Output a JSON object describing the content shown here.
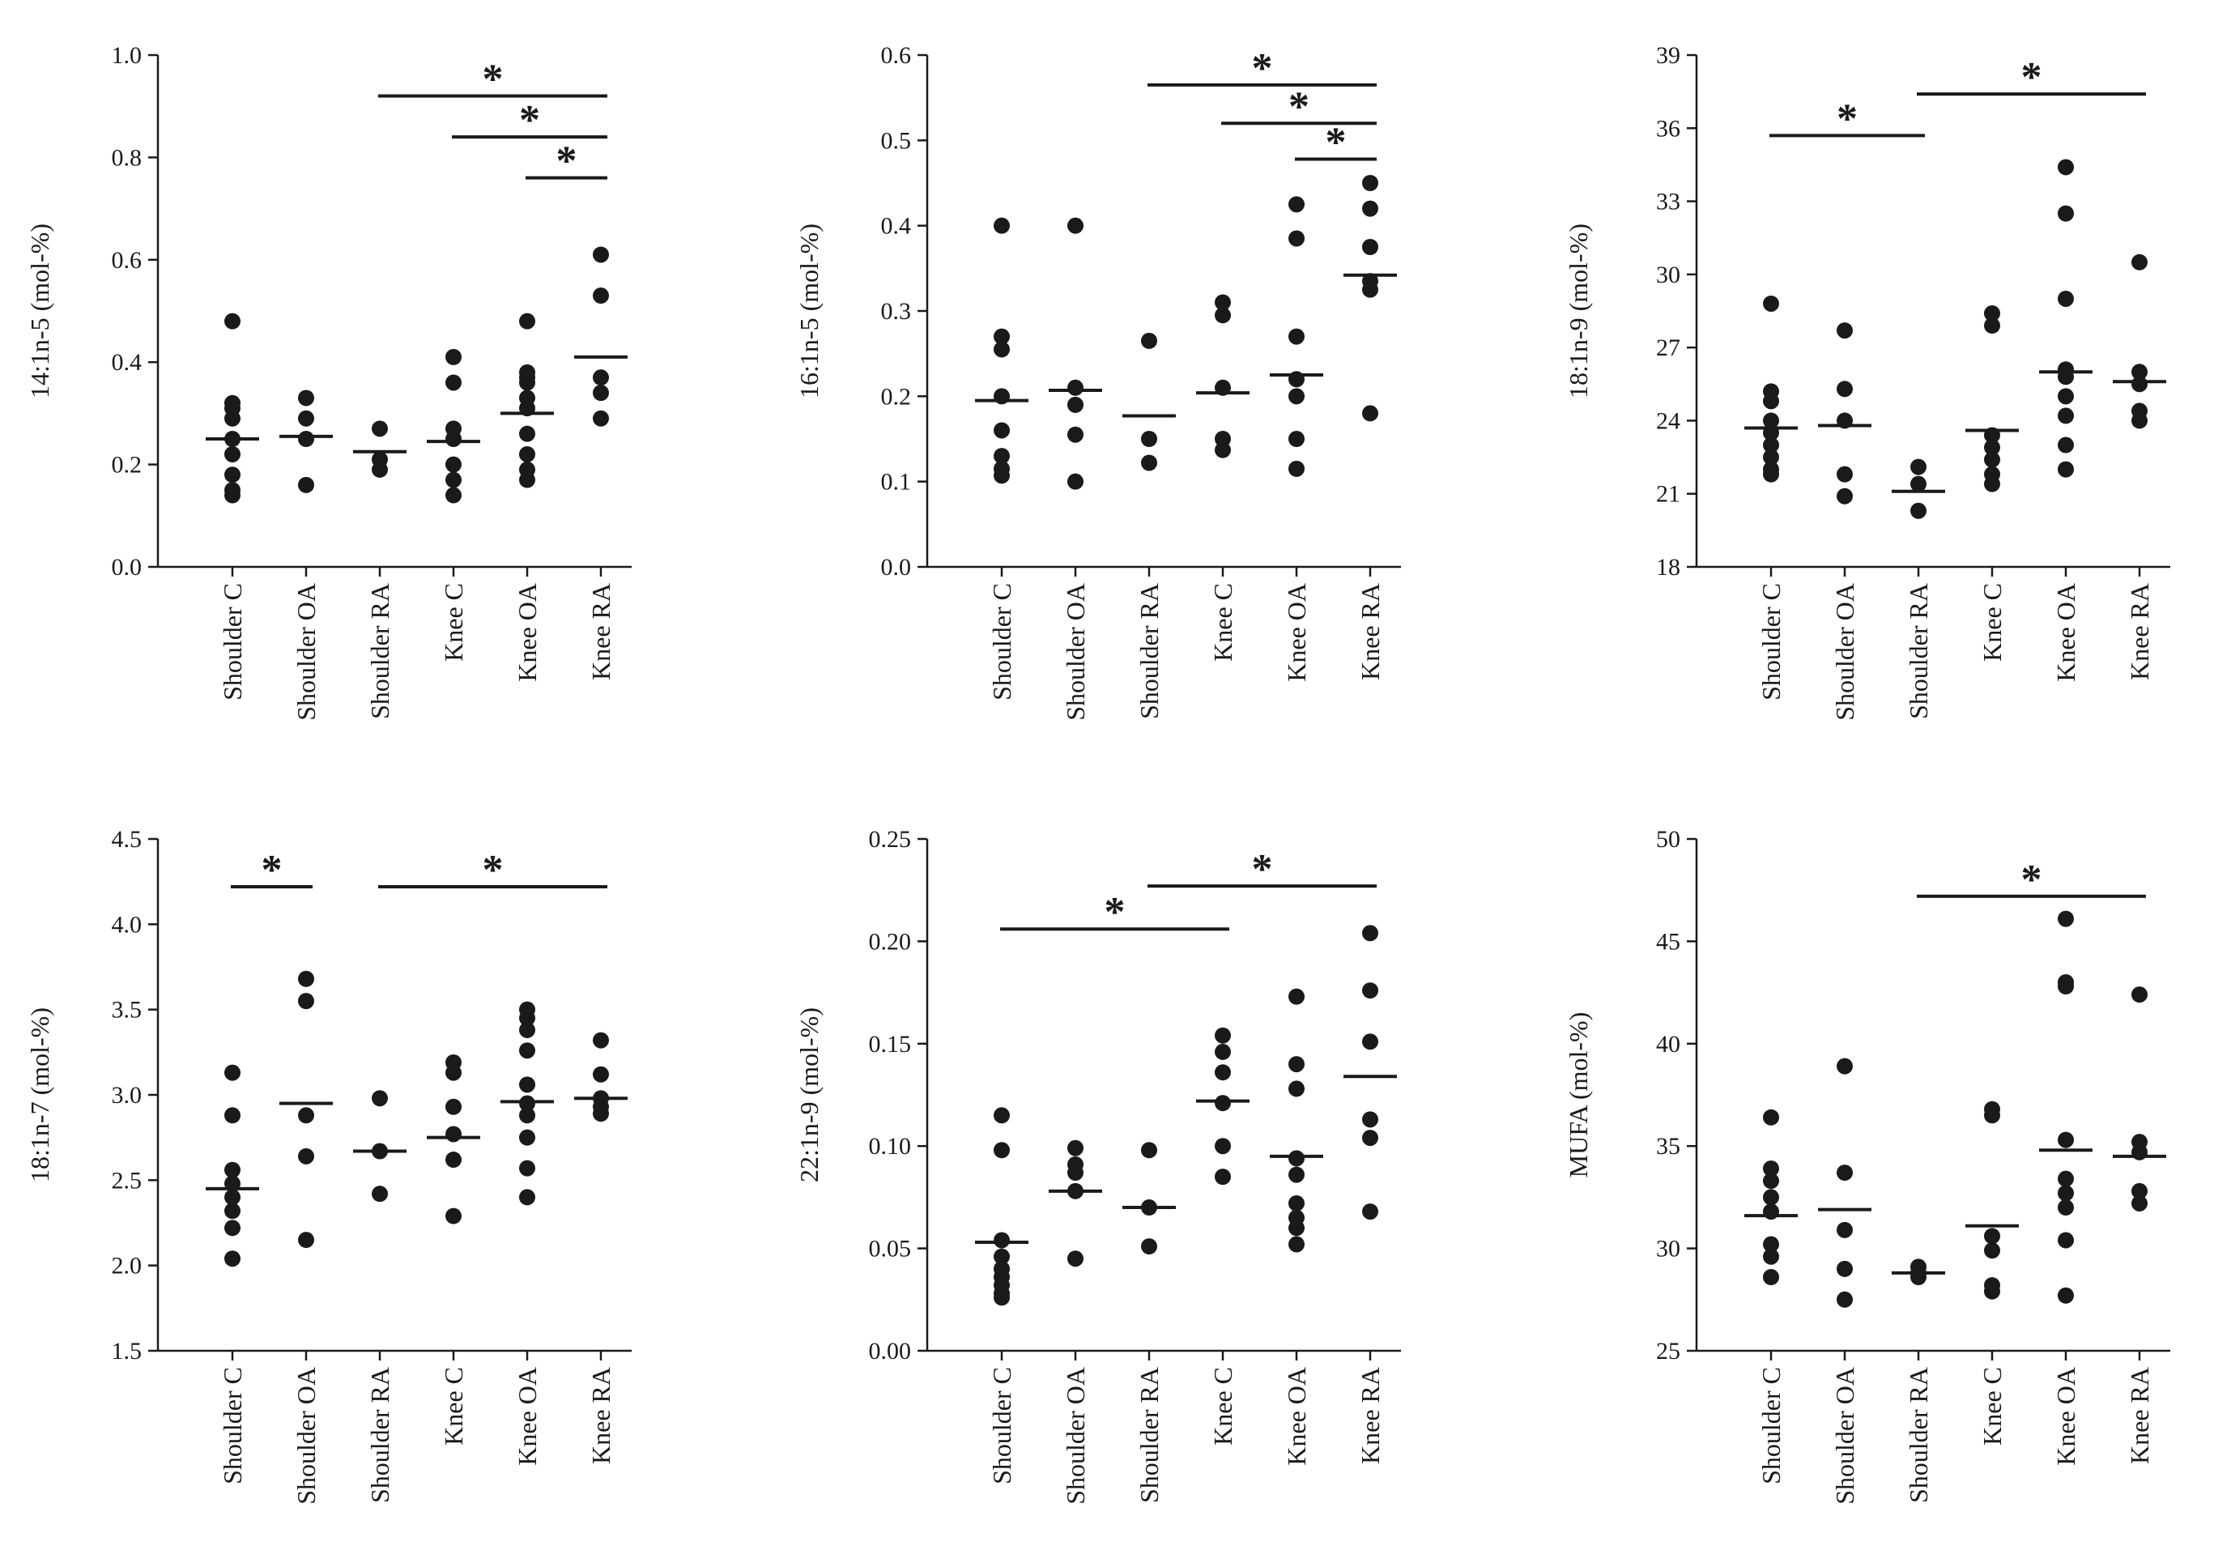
{
  "chart_data": [
    {
      "type": "scatter",
      "ylabel": "14:1n-5 (mol-%)",
      "ylim": [
        0.0,
        1.0
      ],
      "yticks": [
        0.0,
        0.2,
        0.4,
        0.6,
        0.8,
        1.0
      ],
      "ytick_labels": [
        "0.0",
        "0.2",
        "0.4",
        "0.6",
        "0.8",
        "1.0"
      ],
      "categories": [
        "Shoulder C",
        "Shoulder OA",
        "Shoulder RA",
        "Knee C",
        "Knee OA",
        "Knee RA"
      ],
      "points": [
        [
          0.48,
          0.32,
          0.31,
          0.29,
          0.25,
          0.22,
          0.18,
          0.15,
          0.14
        ],
        [
          0.33,
          0.29,
          0.25,
          0.16
        ],
        [
          0.27,
          0.21,
          0.19
        ],
        [
          0.41,
          0.36,
          0.27,
          0.25,
          0.2,
          0.17,
          0.14
        ],
        [
          0.48,
          0.38,
          0.37,
          0.36,
          0.33,
          0.31,
          0.26,
          0.22,
          0.19,
          0.17
        ],
        [
          0.61,
          0.53,
          0.37,
          0.34,
          0.29
        ]
      ],
      "means": [
        0.25,
        0.255,
        0.225,
        0.245,
        0.3,
        0.41
      ],
      "significance": [
        {
          "from": "Shoulder RA",
          "to": "Knee RA",
          "value": 0.92,
          "label": "*"
        },
        {
          "from": "Knee C",
          "to": "Knee RA",
          "value": 0.84,
          "label": "*"
        },
        {
          "from": "Knee OA",
          "to": "Knee RA",
          "value": 0.76,
          "label": "*"
        }
      ]
    },
    {
      "type": "scatter",
      "ylabel": "16:1n-5 (mol-%)",
      "ylim": [
        0.0,
        0.6
      ],
      "yticks": [
        0.0,
        0.1,
        0.2,
        0.3,
        0.4,
        0.5,
        0.6
      ],
      "ytick_labels": [
        "0.0",
        "0.1",
        "0.2",
        "0.3",
        "0.4",
        "0.5",
        "0.6"
      ],
      "categories": [
        "Shoulder C",
        "Shoulder OA",
        "Shoulder RA",
        "Knee C",
        "Knee OA",
        "Knee RA"
      ],
      "points": [
        [
          0.4,
          0.27,
          0.255,
          0.2,
          0.16,
          0.13,
          0.115,
          0.107
        ],
        [
          0.4,
          0.21,
          0.19,
          0.155,
          0.1
        ],
        [
          0.265,
          0.15,
          0.122
        ],
        [
          0.31,
          0.295,
          0.21,
          0.15,
          0.137
        ],
        [
          0.425,
          0.385,
          0.27,
          0.22,
          0.2,
          0.15,
          0.115
        ],
        [
          0.45,
          0.42,
          0.375,
          0.335,
          0.325,
          0.18
        ]
      ],
      "means": [
        0.195,
        0.207,
        0.177,
        0.204,
        0.225,
        0.342
      ],
      "significance": [
        {
          "from": "Shoulder RA",
          "to": "Knee RA",
          "value": 0.565,
          "label": "*"
        },
        {
          "from": "Knee C",
          "to": "Knee RA",
          "value": 0.52,
          "label": "*"
        },
        {
          "from": "Knee OA",
          "to": "Knee RA",
          "value": 0.478,
          "label": "*"
        }
      ]
    },
    {
      "type": "scatter",
      "ylabel": "18:1n-9 (mol-%)",
      "ylim": [
        18,
        39
      ],
      "yticks": [
        18,
        21,
        24,
        27,
        30,
        33,
        36,
        39
      ],
      "ytick_labels": [
        "18",
        "21",
        "24",
        "27",
        "30",
        "33",
        "36",
        "39"
      ],
      "categories": [
        "Shoulder C",
        "Shoulder OA",
        "Shoulder RA",
        "Knee C",
        "Knee OA",
        "Knee RA"
      ],
      "points": [
        [
          28.8,
          25.2,
          24.8,
          24.0,
          23.5,
          23.0,
          22.5,
          22.0,
          21.8
        ],
        [
          27.7,
          25.3,
          24.0,
          21.8,
          20.9
        ],
        [
          22.1,
          21.4,
          20.3
        ],
        [
          28.4,
          27.9,
          23.4,
          22.9,
          22.4,
          21.8,
          21.4
        ],
        [
          34.4,
          32.5,
          29.0,
          26.1,
          25.8,
          25.0,
          24.2,
          23.0,
          22.0
        ],
        [
          30.5,
          26.0,
          25.5,
          24.4,
          24.0
        ]
      ],
      "means": [
        23.7,
        23.8,
        21.1,
        23.6,
        26.0,
        25.6
      ],
      "significance": [
        {
          "from": "Shoulder C",
          "to": "Shoulder RA",
          "value": 35.7,
          "label": "*"
        },
        {
          "from": "Shoulder RA",
          "to": "Knee RA",
          "value": 37.4,
          "label": "*"
        }
      ]
    },
    {
      "type": "scatter",
      "ylabel": "18:1n-7 (mol-%)",
      "ylim": [
        1.5,
        4.5
      ],
      "yticks": [
        1.5,
        2.0,
        2.5,
        3.0,
        3.5,
        4.0,
        4.5
      ],
      "ytick_labels": [
        "1.5",
        "2.0",
        "2.5",
        "3.0",
        "3.5",
        "4.0",
        "4.5"
      ],
      "categories": [
        "Shoulder C",
        "Shoulder OA",
        "Shoulder RA",
        "Knee C",
        "Knee OA",
        "Knee RA"
      ],
      "points": [
        [
          3.13,
          2.88,
          2.56,
          2.48,
          2.4,
          2.32,
          2.22,
          2.04
        ],
        [
          3.68,
          3.55,
          2.88,
          2.64,
          2.15
        ],
        [
          2.98,
          2.67,
          2.42
        ],
        [
          3.19,
          3.13,
          2.93,
          2.77,
          2.62,
          2.29
        ],
        [
          3.5,
          3.45,
          3.38,
          3.26,
          3.06,
          2.95,
          2.88,
          2.75,
          2.57,
          2.4
        ],
        [
          3.32,
          3.12,
          2.98,
          2.93,
          2.89
        ]
      ],
      "means": [
        2.45,
        2.95,
        2.67,
        2.75,
        2.96,
        2.98
      ],
      "significance": [
        {
          "from": "Shoulder C",
          "to": "Shoulder OA",
          "value": 4.22,
          "label": "*"
        },
        {
          "from": "Shoulder RA",
          "to": "Knee RA",
          "value": 4.22,
          "label": "*"
        }
      ]
    },
    {
      "type": "scatter",
      "ylabel": "22:1n-9 (mol-%)",
      "ylim": [
        0.0,
        0.25
      ],
      "yticks": [
        0.0,
        0.05,
        0.1,
        0.15,
        0.2,
        0.25
      ],
      "ytick_labels": [
        "0.00",
        "0.05",
        "0.10",
        "0.15",
        "0.20",
        "0.25"
      ],
      "categories": [
        "Shoulder C",
        "Shoulder OA",
        "Shoulder RA",
        "Knee C",
        "Knee OA",
        "Knee RA"
      ],
      "points": [
        [
          0.115,
          0.098,
          0.054,
          0.046,
          0.04,
          0.036,
          0.032,
          0.028,
          0.026
        ],
        [
          0.099,
          0.091,
          0.087,
          0.078,
          0.045
        ],
        [
          0.098,
          0.07,
          0.051
        ],
        [
          0.154,
          0.146,
          0.136,
          0.121,
          0.1,
          0.085
        ],
        [
          0.173,
          0.14,
          0.128,
          0.094,
          0.086,
          0.072,
          0.065,
          0.06,
          0.052
        ],
        [
          0.204,
          0.176,
          0.151,
          0.113,
          0.104,
          0.068
        ]
      ],
      "means": [
        0.053,
        0.078,
        0.07,
        0.122,
        0.095,
        0.134
      ],
      "significance": [
        {
          "from": "Shoulder C",
          "to": "Knee C",
          "value": 0.206,
          "label": "*"
        },
        {
          "from": "Shoulder RA",
          "to": "Knee RA",
          "value": 0.227,
          "label": "*"
        }
      ]
    },
    {
      "type": "scatter",
      "ylabel": "MUFA (mol-%)",
      "ylim": [
        25,
        50
      ],
      "yticks": [
        25,
        30,
        35,
        40,
        45,
        50
      ],
      "ytick_labels": [
        "25",
        "30",
        "35",
        "40",
        "45",
        "50"
      ],
      "categories": [
        "Shoulder C",
        "Shoulder OA",
        "Shoulder RA",
        "Knee C",
        "Knee OA",
        "Knee RA"
      ],
      "points": [
        [
          36.4,
          33.9,
          33.3,
          32.5,
          31.8,
          30.2,
          29.6,
          28.6
        ],
        [
          38.9,
          33.7,
          30.9,
          29.0,
          27.5
        ],
        [
          29.1,
          28.8,
          28.6
        ],
        [
          36.8,
          36.5,
          30.6,
          29.9,
          28.2,
          27.9
        ],
        [
          46.1,
          43.0,
          42.8,
          35.3,
          33.4,
          32.7,
          32.0,
          30.4,
          27.7
        ],
        [
          42.4,
          35.2,
          34.7,
          32.8,
          32.2
        ]
      ],
      "means": [
        31.6,
        31.9,
        28.8,
        31.1,
        34.8,
        34.5
      ],
      "significance": [
        {
          "from": "Shoulder RA",
          "to": "Knee RA",
          "value": 47.2,
          "label": "*"
        }
      ]
    }
  ]
}
